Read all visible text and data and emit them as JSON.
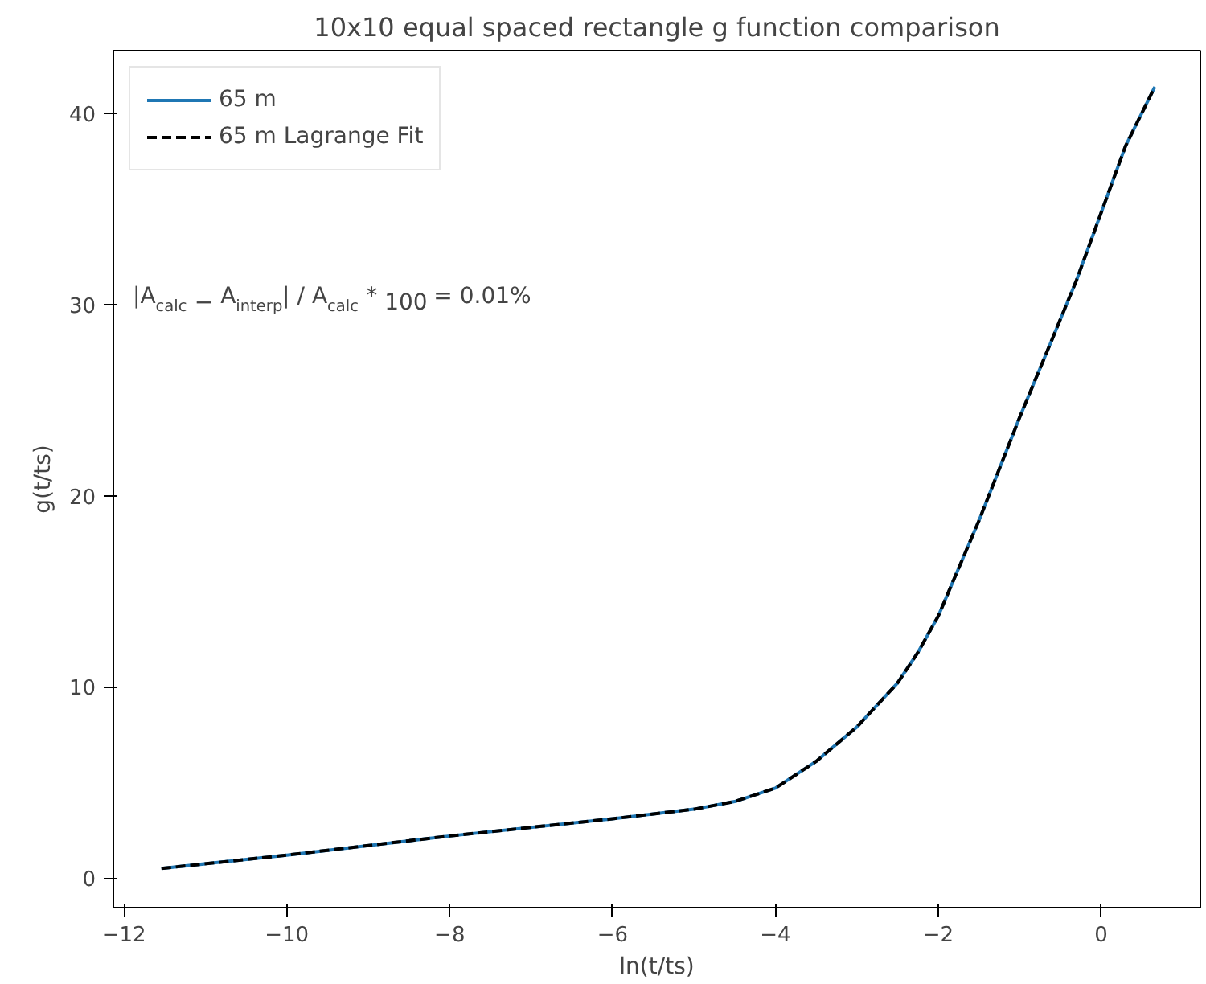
{
  "chart_data": {
    "type": "line",
    "title": "10x10 equal spaced rectangle g function comparison",
    "xlabel": "ln(t/ts)",
    "ylabel": "g(t/ts)",
    "x": [
      -11.54,
      -10,
      -8,
      -6,
      -5,
      -4.5,
      -4,
      -3.5,
      -3,
      -2.5,
      -2.25,
      -2,
      -1.5,
      -1,
      -0.6,
      -0.3,
      0,
      0.3,
      0.66
    ],
    "series": [
      {
        "name": "65 m",
        "color": "#1f77b4",
        "line_style": "solid",
        "values": [
          0.5,
          1.2,
          2.2,
          3.1,
          3.6,
          4.0,
          4.7,
          6.1,
          7.9,
          10.2,
          11.8,
          13.7,
          18.7,
          24.1,
          28.2,
          31.3,
          34.8,
          38.3,
          41.4
        ]
      },
      {
        "name": "65 m Lagrange Fit",
        "color": "#000000",
        "line_style": "dashed",
        "values": [
          0.5,
          1.2,
          2.2,
          3.1,
          3.6,
          4.0,
          4.7,
          6.1,
          7.9,
          10.2,
          11.8,
          13.7,
          18.7,
          24.1,
          28.2,
          31.3,
          34.8,
          38.3,
          41.4
        ]
      }
    ],
    "xlim": [
      -12.13,
      1.22
    ],
    "ylim": [
      -1.55,
      43.3
    ],
    "xticks": [
      -12,
      -10,
      -8,
      -6,
      -4,
      -2,
      0
    ],
    "yticks": [
      0,
      10,
      20,
      30,
      40
    ],
    "grid": false,
    "legend": "top left",
    "annotations": [
      "|A$_{calc}$ − A$_{interp}$| / A$_{calc}$ * 100 = 0.01%"
    ]
  }
}
